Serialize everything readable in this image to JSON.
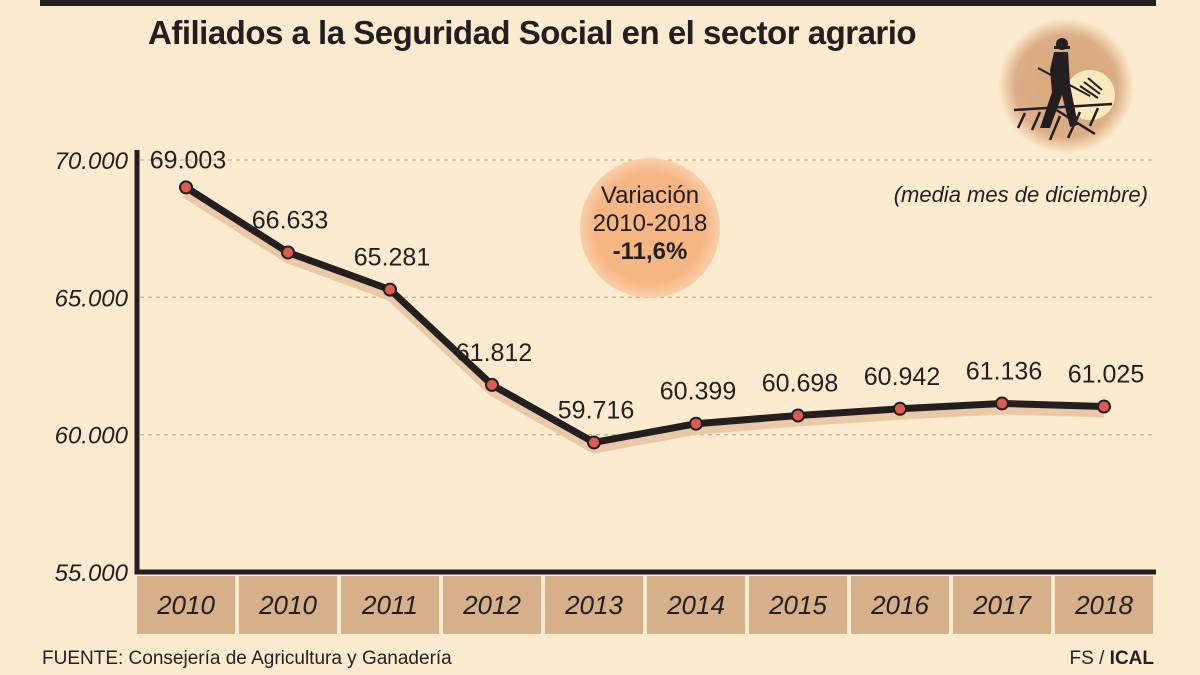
{
  "title": "Afiliados a la Seguridad Social en el sector agrario",
  "note": "(media mes de diciembre)",
  "source": "FUENTE: Consejería de Agricultura y Ganadería",
  "credit": {
    "prefix": "FS /",
    "agency": "ICAL"
  },
  "variation": {
    "label": "Variación",
    "period": "2010-2018",
    "value": "-11,6%"
  },
  "icon": "farmer-with-pitchfork-icon",
  "colors": {
    "background": "#fdebd0",
    "line": "#231f20",
    "marker": "#e05a4f",
    "axis_box": "#d6b08a",
    "badge": "#f6b684"
  },
  "chart_data": {
    "type": "line",
    "title": "Afiliados a la Seguridad Social en el sector agrario",
    "categories": [
      "2010",
      "2010",
      "2011",
      "2012",
      "2013",
      "2014",
      "2015",
      "2016",
      "2017",
      "2018"
    ],
    "values": [
      69003,
      66633,
      65281,
      61812,
      59716,
      60399,
      60698,
      60942,
      61136,
      61025
    ],
    "data_labels": [
      "69.003",
      "66.633",
      "65.281",
      "61.812",
      "59.716",
      "60.399",
      "60.698",
      "60.942",
      "61.136",
      "61.025"
    ],
    "yticks": [
      70000,
      65000,
      60000,
      55000
    ],
    "ytick_labels": [
      "70.000",
      "65.000",
      "60.000",
      "55.000"
    ],
    "ylim": [
      55000,
      70000
    ],
    "grid": "dotted horizontal",
    "xlabel": "",
    "ylabel": ""
  }
}
